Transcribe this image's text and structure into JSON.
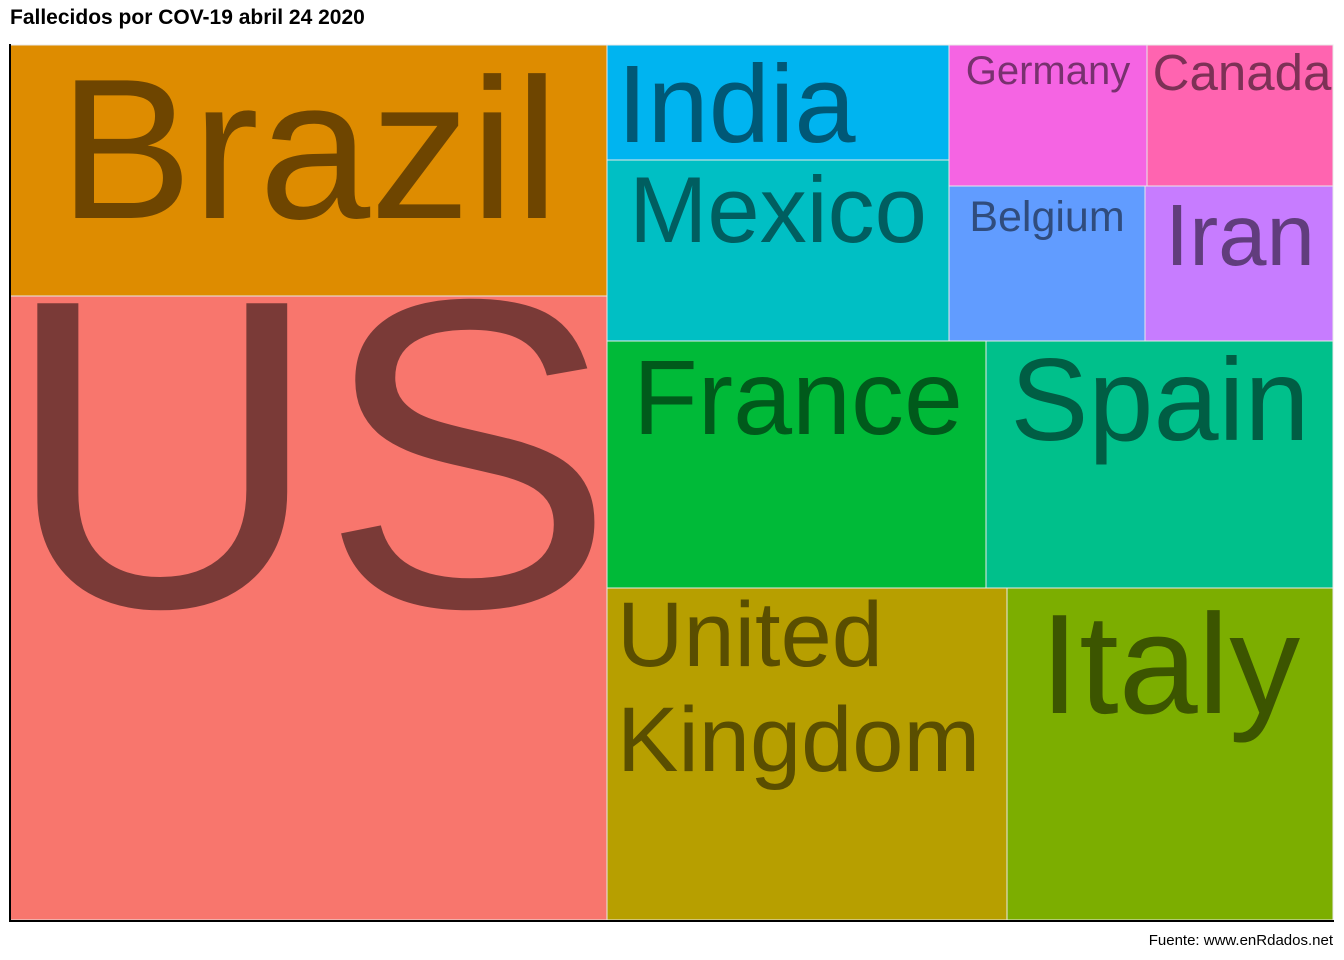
{
  "title": "Fallecidos por COV-19 abril 24 2020",
  "caption": "Fuente: www.enRdados.net",
  "chart_data": {
    "type": "treemap",
    "title": "Fallecidos por COV-19 abril 24 2020",
    "tiles": [
      {
        "label": "US",
        "text_lines": [
          "US"
        ],
        "color": "#F8766D",
        "text_color": "#7A3A37"
      },
      {
        "label": "Brazil",
        "text_lines": [
          "Brazil"
        ],
        "color": "#DE8C00",
        "text_color": "#6E4500"
      },
      {
        "label": "United Kingdom",
        "text_lines": [
          "United",
          "Kingdom"
        ],
        "color": "#B79F00",
        "text_color": "#5A4E00"
      },
      {
        "label": "Italy",
        "text_lines": [
          "Italy"
        ],
        "color": "#7CAE00",
        "text_color": "#3C5500"
      },
      {
        "label": "France",
        "text_lines": [
          "France"
        ],
        "color": "#00BA38",
        "text_color": "#005A1B"
      },
      {
        "label": "Spain",
        "text_lines": [
          "Spain"
        ],
        "color": "#00C08B",
        "text_color": "#005E44"
      },
      {
        "label": "Mexico",
        "text_lines": [
          "Mexico"
        ],
        "color": "#00BFC4",
        "text_color": "#005E60"
      },
      {
        "label": "India",
        "text_lines": [
          "India"
        ],
        "color": "#00B4F0",
        "text_color": "#005876"
      },
      {
        "label": "Belgium",
        "text_lines": [
          "Belgium"
        ],
        "color": "#619CFF",
        "text_color": "#304C7D"
      },
      {
        "label": "Iran",
        "text_lines": [
          "Iran"
        ],
        "color": "#C77CFF",
        "text_color": "#613D7D"
      },
      {
        "label": "Germany",
        "text_lines": [
          "Germany"
        ],
        "color": "#F564E3",
        "text_color": "#78316F"
      },
      {
        "label": "Canada",
        "text_lines": [
          "Canada"
        ],
        "color": "#FF64B0",
        "text_color": "#7D3156"
      }
    ]
  }
}
